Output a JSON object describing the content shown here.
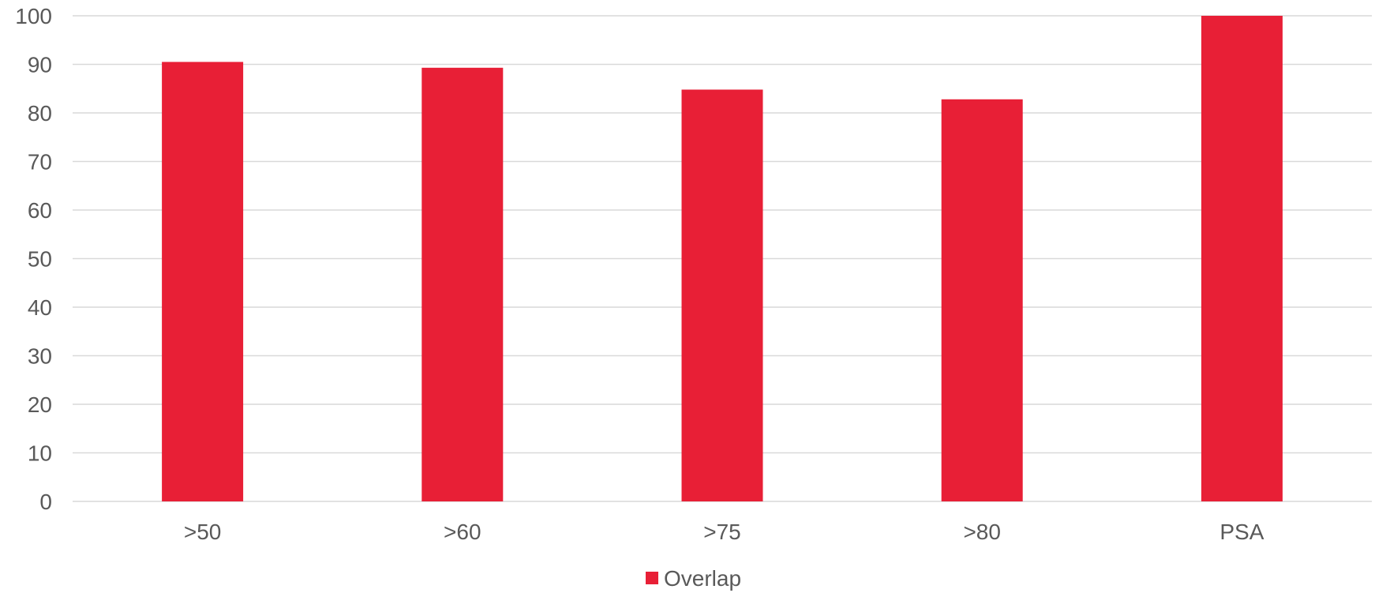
{
  "chart_data": {
    "type": "bar",
    "categories": [
      ">50",
      ">60",
      ">75",
      ">80",
      "PSA"
    ],
    "series": [
      {
        "name": "Overlap",
        "values": [
          90.5,
          89.3,
          84.8,
          82.8,
          100
        ],
        "color": "#e81f36"
      }
    ],
    "ylim": [
      0,
      100
    ],
    "yticks": [
      0,
      10,
      20,
      30,
      40,
      50,
      60,
      70,
      80,
      90,
      100
    ],
    "grid": true,
    "legend_position": "bottom",
    "title": "",
    "xlabel": "",
    "ylabel": ""
  }
}
